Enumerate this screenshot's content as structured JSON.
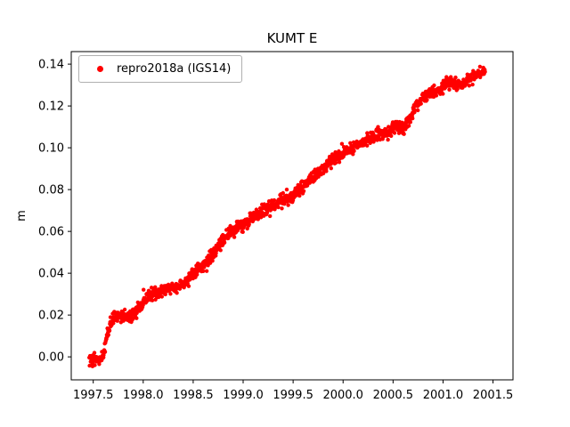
{
  "figure": {
    "background": "#ffffff"
  },
  "chart_data": {
    "type": "scatter",
    "title": "KUMT E",
    "xlabel": "",
    "ylabel": "m",
    "legend": {
      "location": "upper left",
      "entries": [
        {
          "label": "repro2018a (IGS14)",
          "marker": "dot",
          "color": "#ff0000"
        }
      ]
    },
    "axis": {
      "xlim": [
        1997.28,
        2001.7
      ],
      "ylim": [
        -0.011,
        0.146
      ],
      "xtick_values": [
        1997.5,
        1998.0,
        1998.5,
        1999.0,
        1999.5,
        2000.0,
        2000.5,
        2001.0,
        2001.5
      ],
      "xtick_labels": [
        "1997.5",
        "1998.0",
        "1998.5",
        "1999.0",
        "1999.5",
        "2000.0",
        "2000.5",
        "2001.0",
        "2001.5"
      ],
      "ytick_values": [
        0.0,
        0.02,
        0.04,
        0.06,
        0.08,
        0.1,
        0.12,
        0.14
      ],
      "ytick_labels": [
        "0.00",
        "0.02",
        "0.04",
        "0.06",
        "0.08",
        "0.10",
        "0.12",
        "0.14"
      ],
      "grid": false,
      "frame_color": "#000000"
    },
    "series": [
      {
        "name": "repro2018a (IGS14)",
        "color": "#ff0000",
        "marker": "point",
        "marker_radius_px": 2.2,
        "approx_point_count": 1400,
        "noise_std_m": 0.0015,
        "trend_points": [
          [
            1997.46,
            -0.0015
          ],
          [
            1997.5,
            -0.001
          ],
          [
            1997.54,
            -0.0015
          ],
          [
            1997.58,
            -0.001
          ],
          [
            1997.61,
            0.003
          ],
          [
            1997.64,
            0.01
          ],
          [
            1997.67,
            0.016
          ],
          [
            1997.7,
            0.018
          ],
          [
            1997.74,
            0.0195
          ],
          [
            1997.78,
            0.02
          ],
          [
            1997.82,
            0.019
          ],
          [
            1997.86,
            0.0185
          ],
          [
            1997.9,
            0.02
          ],
          [
            1997.95,
            0.023
          ],
          [
            1998.0,
            0.026
          ],
          [
            1998.05,
            0.029
          ],
          [
            1998.1,
            0.031
          ],
          [
            1998.15,
            0.03
          ],
          [
            1998.2,
            0.032
          ],
          [
            1998.25,
            0.033
          ],
          [
            1998.3,
            0.033
          ],
          [
            1998.35,
            0.0335
          ],
          [
            1998.4,
            0.035
          ],
          [
            1998.45,
            0.037
          ],
          [
            1998.5,
            0.04
          ],
          [
            1998.55,
            0.042
          ],
          [
            1998.6,
            0.044
          ],
          [
            1998.65,
            0.046
          ],
          [
            1998.7,
            0.049
          ],
          [
            1998.75,
            0.052
          ],
          [
            1998.8,
            0.056
          ],
          [
            1998.85,
            0.059
          ],
          [
            1998.9,
            0.06
          ],
          [
            1998.95,
            0.062
          ],
          [
            1999.0,
            0.063
          ],
          [
            1999.05,
            0.065
          ],
          [
            1999.1,
            0.067
          ],
          [
            1999.15,
            0.068
          ],
          [
            1999.2,
            0.07
          ],
          [
            1999.25,
            0.071
          ],
          [
            1999.3,
            0.072
          ],
          [
            1999.35,
            0.074
          ],
          [
            1999.4,
            0.075
          ],
          [
            1999.45,
            0.076
          ],
          [
            1999.5,
            0.077
          ],
          [
            1999.55,
            0.079
          ],
          [
            1999.6,
            0.081
          ],
          [
            1999.65,
            0.084
          ],
          [
            1999.7,
            0.086
          ],
          [
            1999.75,
            0.088
          ],
          [
            1999.8,
            0.09
          ],
          [
            1999.85,
            0.092
          ],
          [
            1999.9,
            0.094
          ],
          [
            1999.95,
            0.096
          ],
          [
            2000.0,
            0.097
          ],
          [
            2000.05,
            0.099
          ],
          [
            2000.1,
            0.1
          ],
          [
            2000.15,
            0.102
          ],
          [
            2000.2,
            0.103
          ],
          [
            2000.25,
            0.104
          ],
          [
            2000.3,
            0.105
          ],
          [
            2000.35,
            0.106
          ],
          [
            2000.4,
            0.107
          ],
          [
            2000.45,
            0.108
          ],
          [
            2000.5,
            0.11
          ],
          [
            2000.55,
            0.11
          ],
          [
            2000.6,
            0.109
          ],
          [
            2000.65,
            0.112
          ],
          [
            2000.7,
            0.117
          ],
          [
            2000.73,
            0.12
          ],
          [
            2000.76,
            0.121
          ],
          [
            2000.8,
            0.124
          ],
          [
            2000.85,
            0.126
          ],
          [
            2000.9,
            0.127
          ],
          [
            2000.95,
            0.128
          ],
          [
            2001.0,
            0.129
          ],
          [
            2001.05,
            0.131
          ],
          [
            2001.1,
            0.132
          ],
          [
            2001.15,
            0.13
          ],
          [
            2001.2,
            0.13
          ],
          [
            2001.25,
            0.132
          ],
          [
            2001.3,
            0.134
          ],
          [
            2001.35,
            0.135
          ],
          [
            2001.42,
            0.137
          ]
        ]
      }
    ]
  }
}
